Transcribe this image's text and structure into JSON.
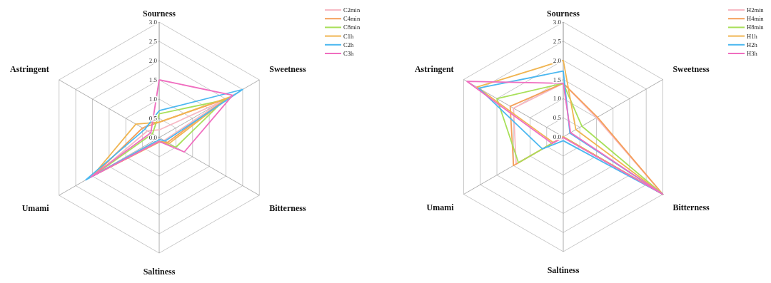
{
  "chart_data": [
    {
      "type": "radar",
      "categories": [
        "Sourness",
        "Sweetness",
        "Bitterness",
        "Saltiness",
        "Umami",
        "Astringent"
      ],
      "ylim": [
        0,
        3
      ],
      "yticks": [
        {
          "value": 0,
          "label": "0.0"
        },
        {
          "value": 0.5,
          "label": "0.5"
        },
        {
          "value": 1,
          "label": "1.0"
        },
        {
          "value": 1.5,
          "label": "1.5"
        },
        {
          "value": 2,
          "label": "2.0"
        },
        {
          "value": 2.5,
          "label": "2.5"
        },
        {
          "value": 3,
          "label": "3.0"
        }
      ],
      "grid": true,
      "legend": "top right",
      "marker": "none",
      "series": [
        {
          "name": "C2min",
          "color": "#f7b9c4",
          "values": [
            0.2,
            1.9,
            0.15,
            0.05,
            1.85,
            0.35
          ]
        },
        {
          "name": "C4min",
          "color": "#f5a05a",
          "values": [
            0.4,
            2.0,
            0.25,
            0.1,
            1.95,
            0.5
          ]
        },
        {
          "name": "C8min",
          "color": "#a8e05a",
          "values": [
            0.62,
            1.95,
            0.5,
            0.1,
            1.95,
            0.2
          ]
        },
        {
          "name": "C1h",
          "color": "#f0b552",
          "values": [
            0.4,
            2.1,
            0.3,
            0.12,
            2.0,
            0.7
          ]
        },
        {
          "name": "C2h",
          "color": "#4cb8f0",
          "values": [
            0.7,
            2.5,
            0.18,
            0.05,
            2.2,
            0.43
          ]
        },
        {
          "name": "C3h",
          "color": "#f06ec0",
          "values": [
            1.5,
            2.2,
            0.75,
            0.1,
            2.05,
            0.25
          ]
        }
      ]
    },
    {
      "type": "radar",
      "categories": [
        "Sourness",
        "Sweetness",
        "Bitterness",
        "Saltiness",
        "Umami",
        "Astringent"
      ],
      "ylim": [
        0,
        3
      ],
      "yticks": [
        {
          "value": 0,
          "label": "0.0"
        },
        {
          "value": 0.5,
          "label": "0.5"
        },
        {
          "value": 1,
          "label": "1.0"
        },
        {
          "value": 1.5,
          "label": "1.5"
        },
        {
          "value": 2,
          "label": "2.0"
        },
        {
          "value": 2.5,
          "label": "2.5"
        },
        {
          "value": 3,
          "label": "3.0"
        }
      ],
      "grid": true,
      "legend": "top right",
      "marker": "none",
      "series": [
        {
          "name": "H2min",
          "color": "#f7b9c4",
          "values": [
            1.4,
            1.0,
            3.0,
            0.0,
            1.42,
            1.5
          ]
        },
        {
          "name": "H4min",
          "color": "#f5a05a",
          "values": [
            1.4,
            1.03,
            3.0,
            0.0,
            1.5,
            1.6
          ]
        },
        {
          "name": "H8min",
          "color": "#a8e05a",
          "values": [
            1.4,
            0.56,
            3.0,
            0.0,
            1.35,
            2.0
          ]
        },
        {
          "name": "H1h",
          "color": "#f0b552",
          "values": [
            2.0,
            0.38,
            3.0,
            0.0,
            0.3,
            2.6
          ]
        },
        {
          "name": "H2h",
          "color": "#4cb8f0",
          "values": [
            1.72,
            0.2,
            3.0,
            0.1,
            0.63,
            2.55
          ]
        },
        {
          "name": "H3h",
          "color": "#f06ec0",
          "values": [
            1.4,
            0.22,
            3.0,
            0.02,
            0.34,
            2.9
          ]
        }
      ]
    }
  ]
}
